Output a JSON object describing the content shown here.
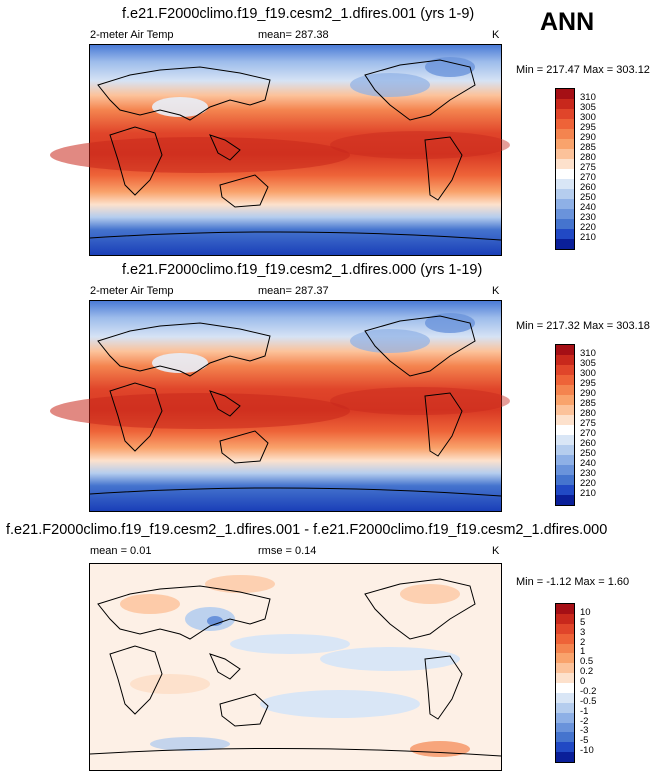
{
  "season": "ANN",
  "panels": [
    {
      "title": "f.e21.F2000climo.f19_f19.cesm2_1.dfires.001 (yrs 1-9)",
      "left_label": "2-meter Air Temp",
      "mean_label": "mean= 287.38",
      "units": "K",
      "minmax": "Min = 217.47 Max = 303.12",
      "colorbar_labels": [
        "310",
        "305",
        "300",
        "295",
        "290",
        "285",
        "280",
        "275",
        "270",
        "260",
        "250",
        "240",
        "230",
        "220",
        "210"
      ],
      "colorbar_colors": [
        "#a50f15",
        "#c8281c",
        "#e0452a",
        "#ee6338",
        "#f4844f",
        "#f9a36c",
        "#fcc29a",
        "#fde1cc",
        "#ffffff",
        "#d9e6f6",
        "#b5cdee",
        "#8eb0e6",
        "#6a93db",
        "#4574ce",
        "#2149c4",
        "#0a1f99"
      ]
    },
    {
      "title": "f.e21.F2000climo.f19_f19.cesm2_1.dfires.000 (yrs 1-19)",
      "left_label": "2-meter Air Temp",
      "mean_label": "mean= 287.37",
      "units": "K",
      "minmax": "Min = 217.32 Max = 303.18",
      "colorbar_labels": [
        "310",
        "305",
        "300",
        "295",
        "290",
        "285",
        "280",
        "275",
        "270",
        "260",
        "250",
        "240",
        "230",
        "220",
        "210"
      ],
      "colorbar_colors": [
        "#a50f15",
        "#c8281c",
        "#e0452a",
        "#ee6338",
        "#f4844f",
        "#f9a36c",
        "#fcc29a",
        "#fde1cc",
        "#ffffff",
        "#d9e6f6",
        "#b5cdee",
        "#8eb0e6",
        "#6a93db",
        "#4574ce",
        "#2149c4",
        "#0a1f99"
      ]
    },
    {
      "title": "f.e21.F2000climo.f19_f19.cesm2_1.dfires.001 - f.e21.F2000climo.f19_f19.cesm2_1.dfires.000",
      "left_label": "mean =   0.01",
      "mean_label": "rmse =   0.14",
      "units": "K",
      "minmax": "Min =  -1.12 Max =   1.60",
      "colorbar_labels": [
        "10",
        "5",
        "3",
        "2",
        "1",
        "0.5",
        "0.2",
        "0",
        "-0.2",
        "-0.5",
        "-1",
        "-2",
        "-3",
        "-5",
        "-10"
      ],
      "colorbar_colors": [
        "#a50f15",
        "#c8281c",
        "#e0452a",
        "#ee6338",
        "#f4844f",
        "#f9a36c",
        "#fcc29a",
        "#fde1cc",
        "#ffffff",
        "#d9e6f6",
        "#b5cdee",
        "#8eb0e6",
        "#6a93db",
        "#4574ce",
        "#2149c4",
        "#0a1f99"
      ]
    }
  ]
}
